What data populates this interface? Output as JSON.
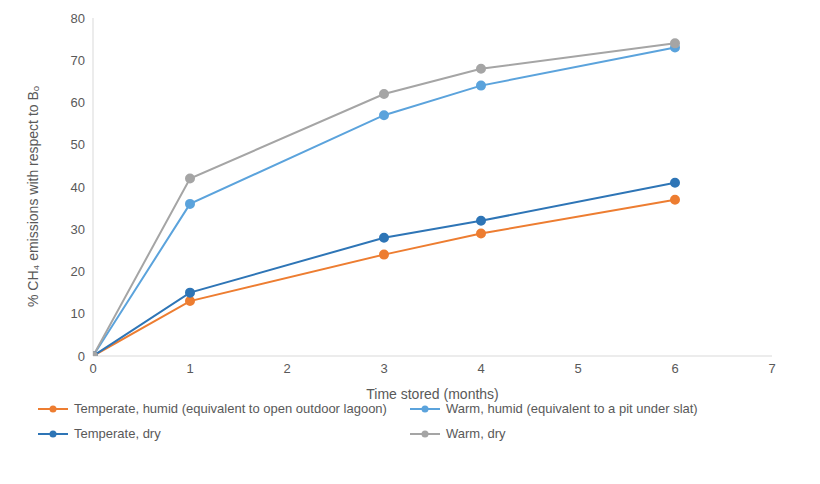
{
  "chart_data": {
    "type": "line",
    "x_label": "Time stored (months)",
    "y_label": "% CH₄ emissions with respect to Bₒ",
    "x": [
      0,
      1,
      3,
      4,
      6
    ],
    "series": [
      {
        "name": "Temperate, humid (equivalent to open outdoor lagoon)",
        "color": "#ED7D31",
        "values": [
          0,
          13,
          24,
          29,
          37
        ]
      },
      {
        "name": "Warm, humid (equivalent to a pit under slat)",
        "color": "#5BA3DC",
        "values": [
          0,
          36,
          57,
          64,
          73
        ]
      },
      {
        "name": "Temperate, dry",
        "color": "#2E75B6",
        "values": [
          0,
          15,
          28,
          32,
          41
        ]
      },
      {
        "name": "Warm, dry",
        "color": "#A5A5A5",
        "values": [
          0,
          42,
          62,
          68,
          74
        ]
      }
    ],
    "xlim": [
      0,
      7
    ],
    "xticks": [
      0,
      1,
      2,
      3,
      4,
      5,
      6,
      7
    ],
    "ylim": [
      0,
      80
    ],
    "yticks": [
      0,
      10,
      20,
      30,
      40,
      50,
      60,
      70,
      80
    ],
    "grid": false,
    "legend": "bottom",
    "marker": "circle"
  }
}
